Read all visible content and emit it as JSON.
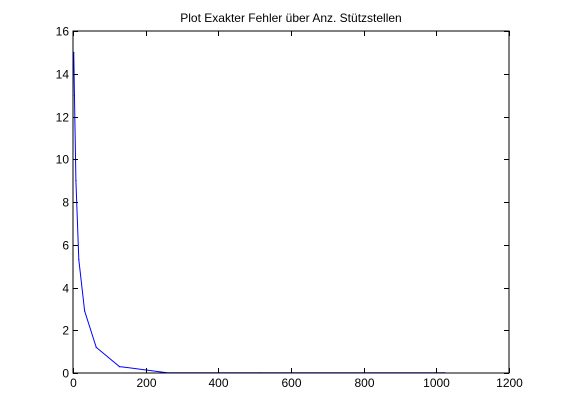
{
  "chart_data": {
    "type": "line",
    "title": "Plot Exakter Fehler über Anz. Stützstellen",
    "xlabel": "",
    "ylabel": "",
    "xlim": [
      0,
      1200
    ],
    "ylim": [
      0,
      16
    ],
    "xticks": [
      0,
      200,
      400,
      600,
      800,
      1000,
      1200
    ],
    "yticks": [
      0,
      2,
      4,
      6,
      8,
      10,
      12,
      14,
      16
    ],
    "grid": false,
    "legend": "none",
    "series": [
      {
        "color": "#0000ff",
        "x": [
          2,
          4,
          8,
          16,
          32,
          64,
          128,
          256,
          512,
          1024
        ],
        "y": [
          15.0,
          13.0,
          9.0,
          5.3,
          2.9,
          1.2,
          0.3,
          0.02,
          0.01,
          0.01
        ]
      }
    ]
  }
}
